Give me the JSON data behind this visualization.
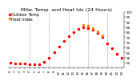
{
  "title": "Milw. Temp. and Heat Idx (24 Hours)",
  "legend_temp": "Outdoor Temp",
  "legend_hi": "Heat Index",
  "background_color": "#ffffff",
  "plot_bg_color": "#ffffff",
  "grid_color": "#999999",
  "temp_color": "#ff0000",
  "hi_color": "#ff8800",
  "ylim": [
    45,
    100
  ],
  "ytick_values": [
    50,
    55,
    60,
    65,
    70,
    75,
    80,
    85,
    90,
    95,
    100
  ],
  "ytick_labels": [
    "50",
    "55",
    "60",
    "65",
    "70",
    "75",
    "80",
    "85",
    "90",
    "95",
    "100"
  ],
  "hours": [
    0,
    1,
    2,
    3,
    4,
    5,
    6,
    7,
    8,
    9,
    10,
    11,
    12,
    13,
    14,
    15,
    16,
    17,
    18,
    19,
    20,
    21,
    22,
    23
  ],
  "temp": [
    50,
    49,
    49,
    49,
    48,
    48,
    48,
    51,
    55,
    60,
    66,
    71,
    76,
    80,
    83,
    85,
    84,
    82,
    79,
    75,
    69,
    64,
    59,
    55
  ],
  "heat_index": [
    null,
    null,
    null,
    null,
    null,
    null,
    null,
    null,
    null,
    null,
    null,
    null,
    null,
    null,
    null,
    87,
    86,
    84,
    81,
    77,
    null,
    null,
    null,
    null
  ],
  "vgrid_hours": [
    4,
    8,
    12,
    16,
    20
  ],
  "marker_size": 1.5,
  "title_fontsize": 4.5,
  "legend_fontsize": 3.5,
  "tick_fontsize": 3.0,
  "linewidth": 0.5
}
